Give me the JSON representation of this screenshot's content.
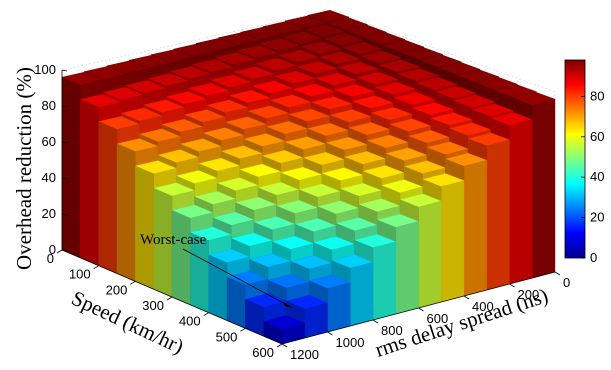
{
  "chart_data": {
    "type": "surface3d",
    "title": "",
    "zlabel": "Overhead reduction (%)",
    "xlabel": "Speed (km/hr)",
    "ylabel": "rms delay spread (ns)",
    "z_ticks": [
      "0",
      "20",
      "40",
      "60",
      "80",
      "100"
    ],
    "speed_ticks": [
      "0",
      "100",
      "200",
      "300",
      "400",
      "500",
      "600"
    ],
    "delay_ticks": [
      "0",
      "200",
      "400",
      "600",
      "800",
      "1000",
      "1200"
    ],
    "colorbar_ticks": [
      "0",
      "20",
      "40",
      "60",
      "80"
    ],
    "zlim": [
      0,
      100
    ],
    "speed_lim": [
      0,
      600
    ],
    "delay_lim": [
      0,
      1200
    ],
    "colorbar_range": [
      0,
      98
    ],
    "grid": true,
    "colormap": "jet",
    "annotation": {
      "text": "Worst-case",
      "at_speed_kmhr": 600,
      "at_delay_ns": 1200,
      "at_reduction_pct": 0
    },
    "surface_model": "reduction approx 100 * (1 - (speed/600) * (delay/1200)), sampled on a stepped grid",
    "corner_values": [
      {
        "speed": 0,
        "delay": 0,
        "reduction": 100
      },
      {
        "speed": 600,
        "delay": 0,
        "reduction": 98
      },
      {
        "speed": 0,
        "delay": 1200,
        "reduction": 98
      },
      {
        "speed": 600,
        "delay": 1200,
        "reduction": 0
      }
    ]
  }
}
